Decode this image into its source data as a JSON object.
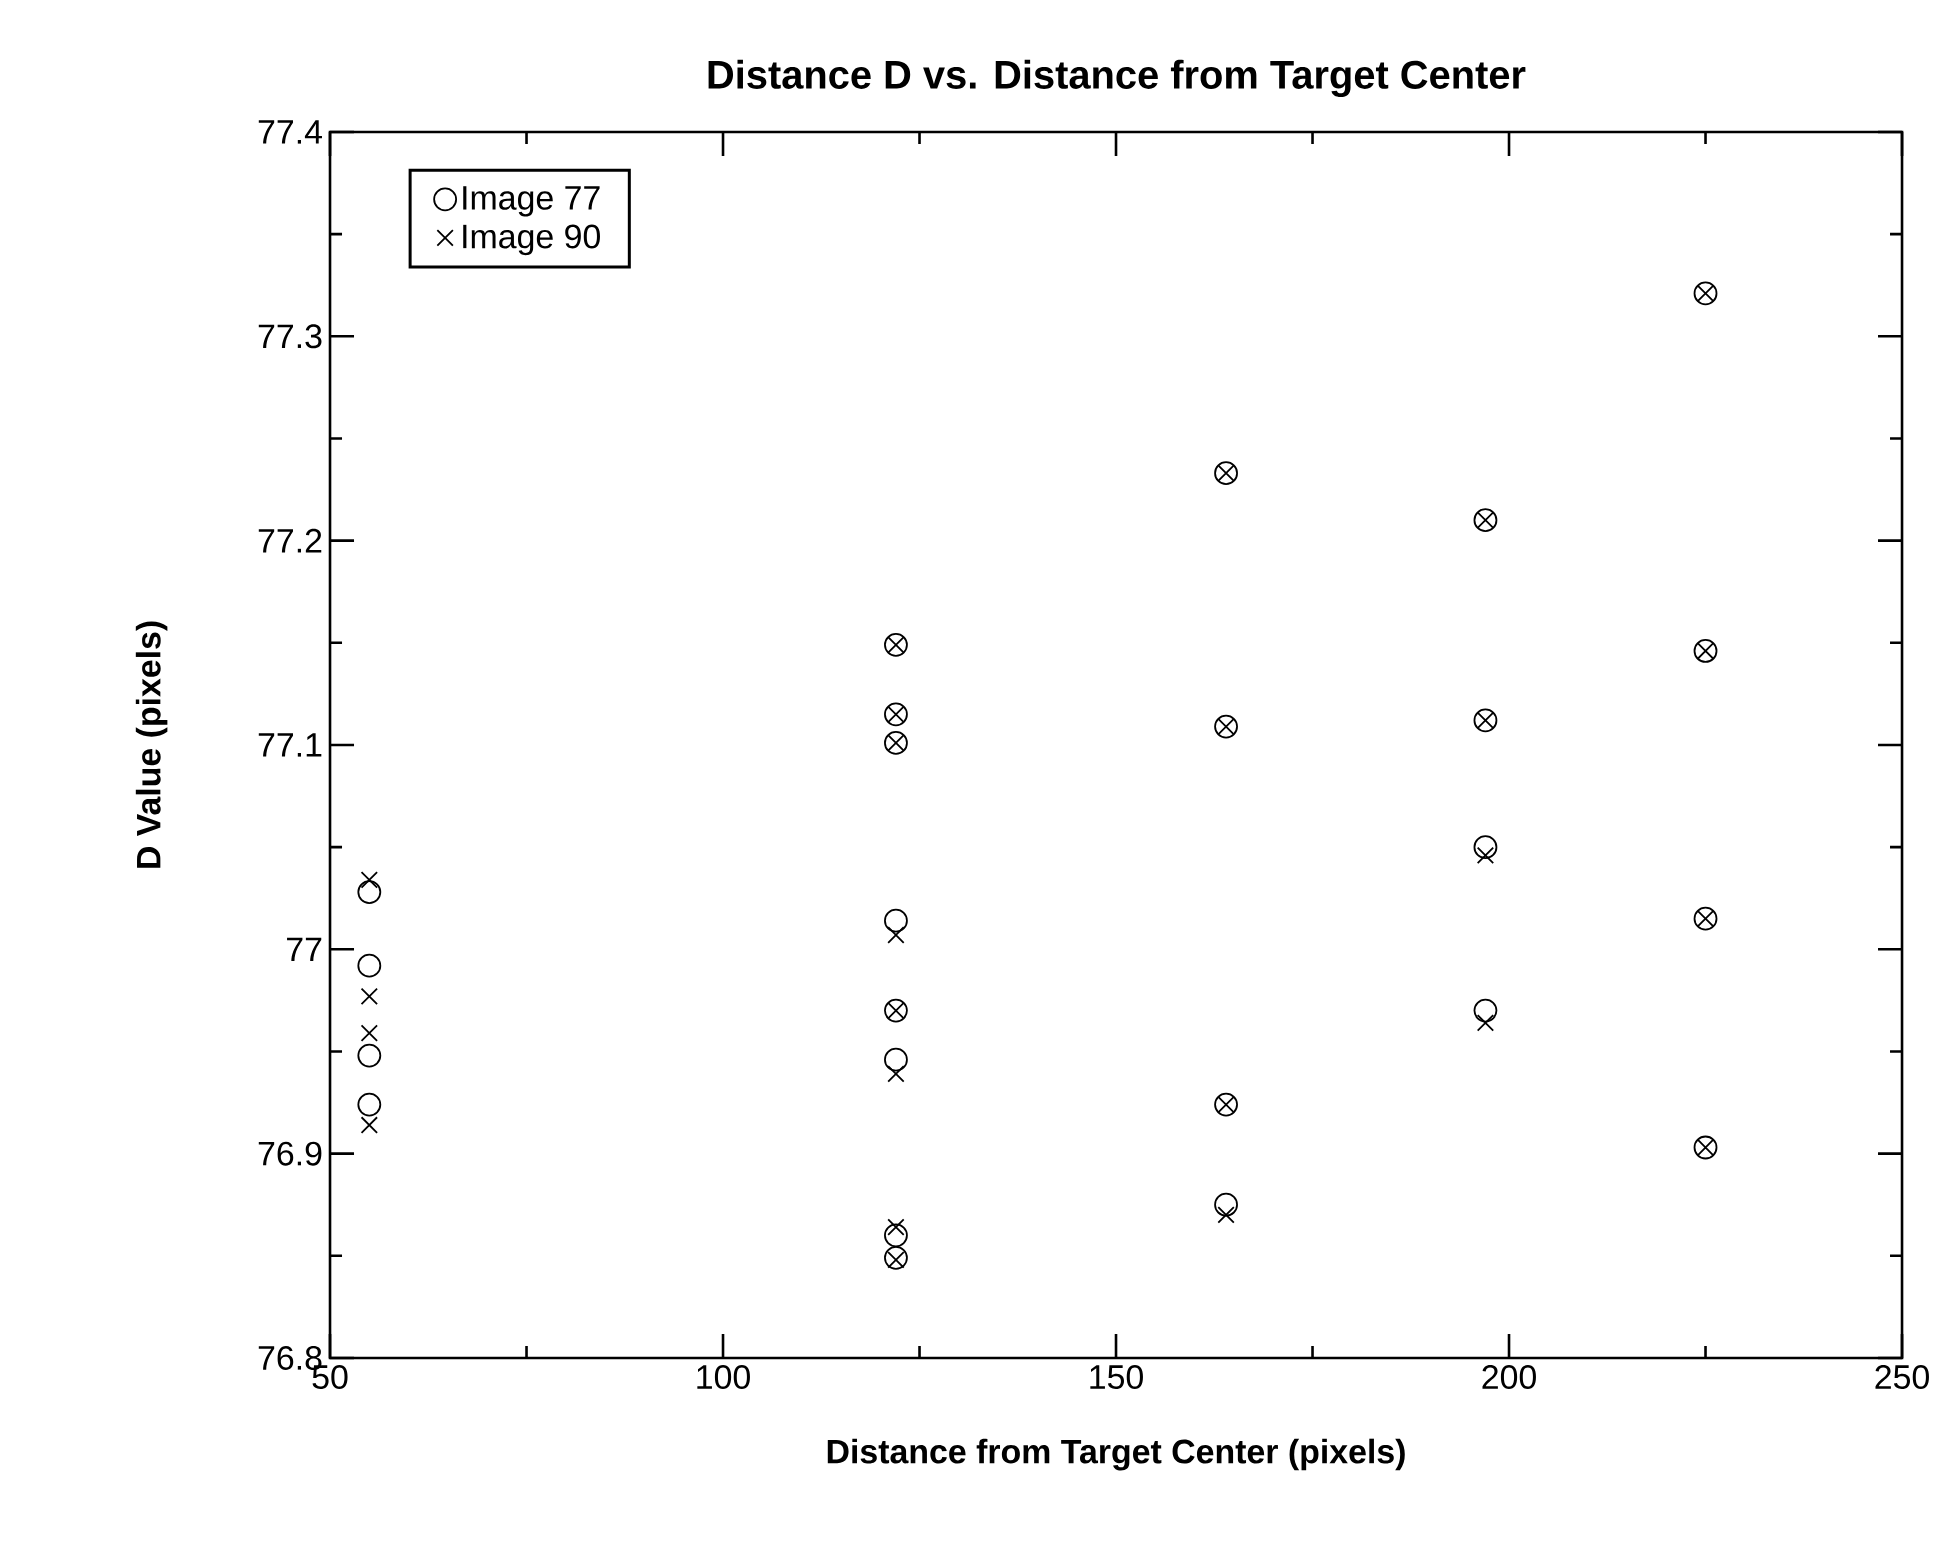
{
  "chart_data": {
    "type": "scatter",
    "title": "Distance D vs. Distance from Target Center",
    "xlabel": "Distance from Target Center (pixels)",
    "ylabel": "D Value (pixels)",
    "xlim": [
      50,
      250
    ],
    "xticks": [
      50,
      100,
      150,
      200,
      250
    ],
    "ylim": [
      76.8,
      77.4
    ],
    "yticks": [
      76.8,
      76.9,
      77,
      77.1,
      77.2,
      77.3,
      77.4
    ],
    "grid": false,
    "legend": "top left",
    "series": [
      {
        "name": "Image 77",
        "color": "#000000",
        "marker": "circle",
        "x": [
          55,
          55,
          55,
          55,
          122,
          122,
          122,
          122,
          122,
          122,
          122,
          122,
          164,
          164,
          164,
          164,
          197,
          197,
          197,
          197,
          225,
          225,
          225,
          225
        ],
        "values": [
          77.028,
          76.992,
          76.948,
          76.924,
          77.149,
          77.115,
          77.101,
          77.014,
          76.97,
          76.946,
          76.86,
          76.849,
          77.233,
          77.109,
          76.924,
          76.875,
          77.21,
          77.112,
          77.05,
          76.97,
          77.321,
          77.146,
          77.015,
          76.903
        ]
      },
      {
        "name": "Image 90",
        "color": "#000000",
        "marker": "cross",
        "x": [
          55,
          55,
          55,
          55,
          122,
          122,
          122,
          122,
          122,
          122,
          122,
          122,
          164,
          164,
          164,
          164,
          197,
          197,
          197,
          197,
          225,
          225,
          225,
          225
        ],
        "values": [
          77.034,
          76.977,
          76.959,
          76.914,
          77.149,
          77.115,
          77.101,
          77.007,
          76.97,
          76.939,
          76.864,
          76.848,
          77.233,
          77.109,
          76.924,
          76.87,
          77.21,
          77.112,
          77.046,
          76.964,
          77.321,
          77.146,
          77.015,
          76.903
        ]
      }
    ]
  }
}
